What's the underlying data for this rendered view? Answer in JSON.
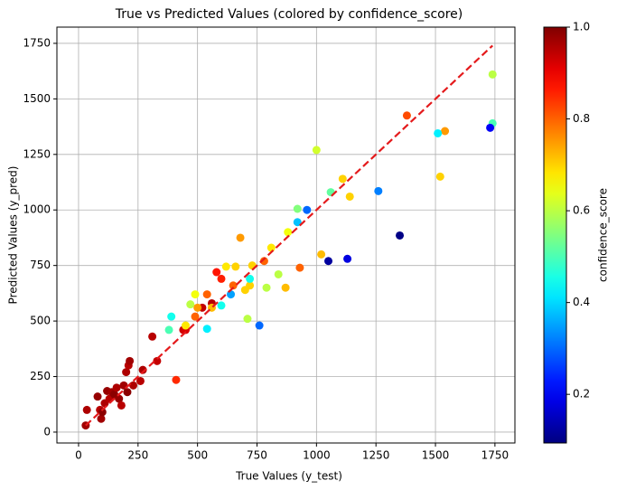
{
  "chart_data": {
    "type": "scatter",
    "title": "True vs Predicted Values (colored by confidence_score)",
    "x_label": "True Values (y_test)",
    "y_label": "Predicted Values (y_pred)",
    "colorbar_label": "confidence_score",
    "colormap": "jet",
    "clim": [
      0.094,
      1.0
    ],
    "cticks": [
      0.2,
      0.4,
      0.6,
      0.8,
      {
        "value": 1.0,
        "label": "1.0"
      }
    ],
    "xlim": [
      -91,
      1834
    ],
    "ylim": [
      -49,
      1823
    ],
    "xticks": [
      0,
      250,
      500,
      750,
      1000,
      1250,
      1500,
      1750
    ],
    "yticks": [
      0,
      250,
      500,
      750,
      1000,
      1250,
      1500,
      1750
    ],
    "grid": true,
    "x": [
      30,
      35,
      80,
      90,
      95,
      100,
      110,
      120,
      130,
      140,
      150,
      160,
      170,
      180,
      190,
      200,
      205,
      210,
      215,
      230,
      260,
      270,
      310,
      330,
      440,
      450,
      520,
      560,
      410,
      580,
      600,
      540,
      650,
      680,
      780,
      930,
      1380,
      1540,
      870,
      1020,
      1110,
      1140,
      1520,
      500,
      490,
      660,
      730,
      700,
      720,
      810,
      880,
      1000,
      1740,
      490,
      620,
      470,
      450,
      560,
      380,
      390,
      920,
      1060,
      1740,
      840,
      790,
      710,
      1510,
      600,
      540,
      720,
      920,
      640,
      960,
      1260,
      760,
      1730,
      1350,
      1130,
      1050
    ],
    "y": [
      30,
      100,
      160,
      100,
      60,
      90,
      130,
      185,
      150,
      180,
      170,
      200,
      150,
      120,
      210,
      270,
      180,
      300,
      320,
      210,
      230,
      280,
      430,
      320,
      460,
      460,
      560,
      580,
      235,
      720,
      690,
      620,
      660,
      875,
      770,
      740,
      1425,
      1355,
      650,
      800,
      1140,
      1060,
      1150,
      560,
      520,
      745,
      750,
      640,
      660,
      830,
      900,
      1270,
      1610,
      620,
      745,
      575,
      480,
      560,
      460,
      520,
      1005,
      1080,
      1390,
      710,
      650,
      510,
      1345,
      570,
      465,
      690,
      945,
      620,
      1000,
      1085,
      480,
      1370,
      885,
      780,
      770
    ],
    "c": [
      0.97,
      0.96,
      0.98,
      0.95,
      0.97,
      0.99,
      0.96,
      0.98,
      0.95,
      0.97,
      0.99,
      0.96,
      0.98,
      0.95,
      0.97,
      0.96,
      0.99,
      0.95,
      0.97,
      0.96,
      0.95,
      0.96,
      0.95,
      0.94,
      0.93,
      0.92,
      0.94,
      0.95,
      0.85,
      0.87,
      0.86,
      0.8,
      0.8,
      0.75,
      0.8,
      0.8,
      0.82,
      0.75,
      0.72,
      0.72,
      0.7,
      0.7,
      0.7,
      0.75,
      0.8,
      0.7,
      0.7,
      0.7,
      0.7,
      0.68,
      0.65,
      0.62,
      0.6,
      0.65,
      0.68,
      0.6,
      0.68,
      0.72,
      0.5,
      0.45,
      0.55,
      0.52,
      0.5,
      0.6,
      0.6,
      0.6,
      0.42,
      0.45,
      0.42,
      0.45,
      0.38,
      0.35,
      0.3,
      0.32,
      0.3,
      0.2,
      0.1,
      0.18,
      0.12
    ],
    "reference_line": {
      "x": [
        30,
        1740
      ],
      "y": [
        30,
        1740
      ],
      "color": "#e41a1c"
    }
  }
}
